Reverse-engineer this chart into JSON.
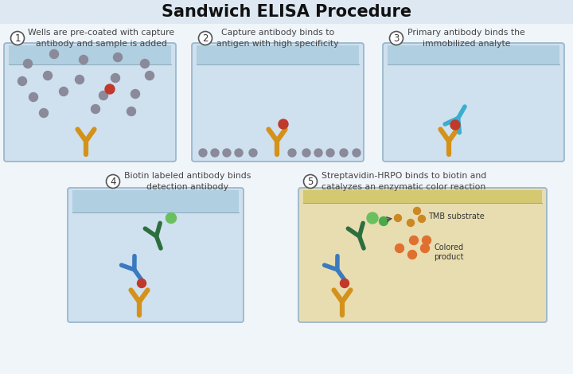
{
  "title": "Sandwich ELISA Procedure",
  "title_fontsize": 15,
  "title_fontweight": "bold",
  "bg_color": "#f0f5fa",
  "header_color": "#dde8f2",
  "well_bg": "#cfe0ee",
  "well_top": "#b0cfe0",
  "well_border": "#9ab8cc",
  "well5_bg": "#e8ddb0",
  "well5_top": "#d4c870",
  "antibody_gold": "#d4921a",
  "antibody_teal": "#3aaecc",
  "antibody_blue": "#3a7abf",
  "antibody_dgreen": "#2d6e3e",
  "antigen_red": "#c0392b",
  "antigen_gray": "#8a8a9a",
  "biotin_green": "#6abf5e",
  "tmb_brown": "#cc8822",
  "product_orange": "#e07030",
  "step_texts": [
    "Wells are pre-coated with capture\nantibody and sample is added",
    "Capture antibody binds to\nantigen with high specificity",
    "Primary antibody binds the\nimmobilized analyte",
    "Biotin labeled antibody binds\ndetection antibody",
    "Streptavidin-HRPO binds to biotin and\ncatalyzes an enzymatic color reaction"
  ]
}
